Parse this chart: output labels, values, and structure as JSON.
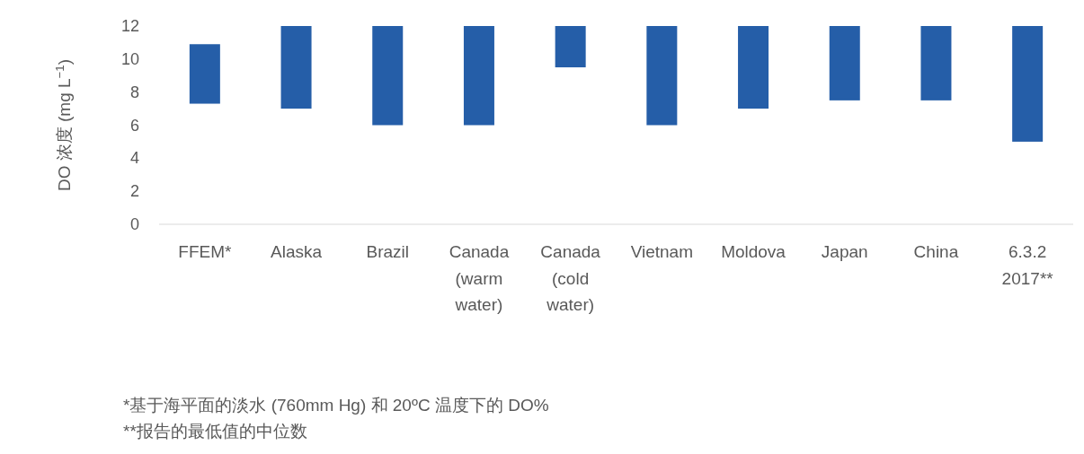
{
  "chart_data": {
    "type": "bar",
    "ylabel": "DO 浓度 (mg L$^{−1}$)",
    "categories": [
      "FFEM*",
      "Alaska",
      "Brazil",
      "Canada (warm water)",
      "Canada (cold water)",
      "Vietnam",
      "Moldova",
      "Japan",
      "China",
      "6.3.2 2017**"
    ],
    "base": [
      7.3,
      7,
      6,
      6,
      9.5,
      6,
      7,
      7.5,
      7.5,
      5
    ],
    "values": [
      3.6,
      5,
      6,
      6,
      2.5,
      6,
      5,
      4.5,
      4.5,
      7
    ],
    "color": "#255ea8",
    "ylim": [
      0,
      12
    ],
    "yticks": [
      0,
      2,
      4,
      6,
      8,
      10,
      12
    ],
    "grid": false,
    "annotations": [
      "*基于海平面的淡水 (760mm Hg) 和 20ºC 温度下的 DO%",
      "**报告的最低值的中位数"
    ]
  }
}
